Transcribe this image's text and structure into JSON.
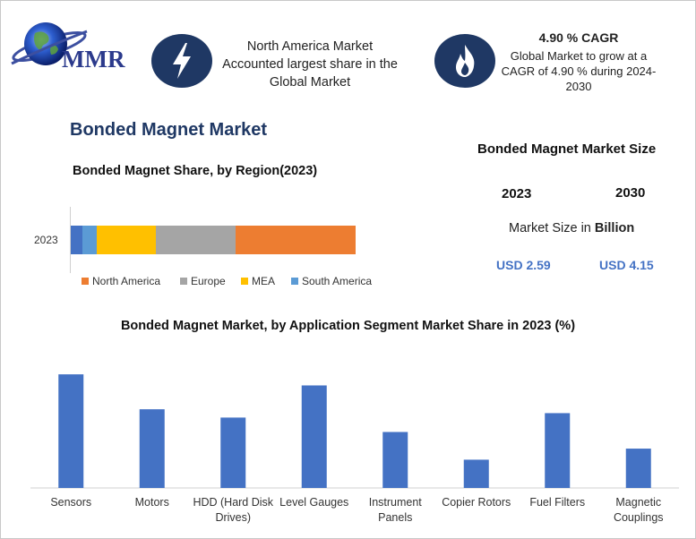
{
  "brand": {
    "name": "MMR"
  },
  "header": {
    "highlight_text": "North America Market Accounted largest share in the Global Market",
    "cagr_title": "4.90 % CAGR",
    "cagr_text": "Global Market to grow at a CAGR of 4.90 % during 2024-2030"
  },
  "main_title": "Bonded Magnet Market",
  "market_size": {
    "title": "Bonded Magnet Market Size",
    "year_start": "2023",
    "year_end": "2030",
    "unit_label_prefix": "Market Size in",
    "unit_label_bold": "Billion",
    "value_start": "USD 2.59",
    "value_end": "USD 4.15"
  },
  "colors": {
    "dark_blue": "#1f3864",
    "bar_blue": "#4472c4",
    "orange": "#ed7d31",
    "gray": "#a5a5a5",
    "yellow": "#ffc000",
    "light_blue": "#5b9bd5"
  },
  "icons": {
    "left": "lightning-bolt-icon",
    "right": "flame-icon"
  },
  "chart_data": [
    {
      "type": "bar",
      "orientation": "horizontal-stacked",
      "title": "Bonded Magnet Share, by Region(2023)",
      "categories": [
        "2023"
      ],
      "series": [
        {
          "name": "North America",
          "values": [
            42
          ],
          "color": "#ed7d31"
        },
        {
          "name": "Europe",
          "values": [
            28
          ],
          "color": "#a5a5a5"
        },
        {
          "name": "MEA",
          "values": [
            21
          ],
          "color": "#ffc000"
        },
        {
          "name": "South America",
          "values": [
            5
          ],
          "color": "#5b9bd5"
        },
        {
          "name": "",
          "values": [
            4
          ],
          "color": "#4472c4"
        }
      ],
      "legend_position": "bottom",
      "xlim": [
        0,
        100
      ]
    },
    {
      "type": "bar",
      "title": "Bonded Magnet Market, by Application Segment Market Share in 2023 (%)",
      "categories": [
        "Sensors",
        "Motors",
        "HDD (Hard Disk Drives)",
        "Level Gauges",
        "Instrument Panels",
        "Copier Rotors",
        "Fuel Filters",
        "Magnetic Couplings"
      ],
      "category_lines": [
        [
          "Sensors"
        ],
        [
          "Motors"
        ],
        [
          "HDD (Hard Disk",
          "Drives)"
        ],
        [
          "Level Gauges"
        ],
        [
          "Instrument",
          "Panels"
        ],
        [
          "Copier Rotors"
        ],
        [
          "Fuel Filters"
        ],
        [
          "Magnetic",
          "Couplings"
        ]
      ],
      "values": [
        20.5,
        14.2,
        12.7,
        18.5,
        10.1,
        5.1,
        13.5,
        7.1
      ],
      "ylim": [
        0,
        21
      ],
      "grid": false
    }
  ]
}
